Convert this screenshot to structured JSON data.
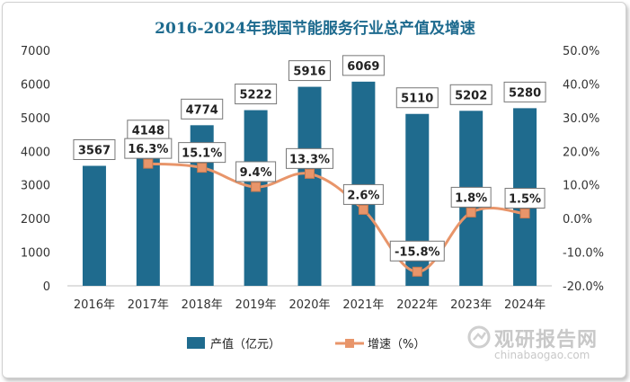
{
  "chart_data": {
    "type": "bar+line",
    "title": "2016-2024年我国节能服务行业总产值及增速",
    "categories": [
      "2016年",
      "2017年",
      "2018年",
      "2019年",
      "2020年",
      "2021年",
      "2022年",
      "2023年",
      "2024年"
    ],
    "series": [
      {
        "name": "产值（亿元）",
        "type": "bar",
        "axis": "left",
        "color": "#1f6b8e",
        "values": [
          3567,
          4148,
          4774,
          5222,
          5916,
          6069,
          5110,
          5202,
          5280
        ],
        "labels": [
          "3567",
          "4148",
          "4774",
          "5222",
          "5916",
          "6069",
          "5110",
          "5202",
          "5280"
        ]
      },
      {
        "name": "增速（%）",
        "type": "line",
        "axis": "right",
        "color": "#e8956a",
        "values": [
          null,
          16.3,
          15.1,
          9.4,
          13.3,
          2.6,
          -15.8,
          1.8,
          1.5
        ],
        "labels": [
          "",
          "16.3%",
          "15.1%",
          "9.4%",
          "13.3%",
          "2.6%",
          "-15.8%",
          "1.8%",
          "1.5%"
        ]
      }
    ],
    "y_left": {
      "min": 0,
      "max": 7000,
      "step": 1000,
      "ticks": [
        "0",
        "1000",
        "2000",
        "3000",
        "4000",
        "5000",
        "6000",
        "7000"
      ]
    },
    "y_right": {
      "min": -20,
      "max": 50,
      "step": 10,
      "ticks": [
        "-20.0%",
        "-10.0%",
        "0.0%",
        "10.0%",
        "20.0%",
        "30.0%",
        "40.0%",
        "50.0%"
      ]
    },
    "grid": false,
    "legend_position": "bottom"
  },
  "watermark": {
    "name": "观研报告网",
    "url": "chinabaogao.com"
  }
}
